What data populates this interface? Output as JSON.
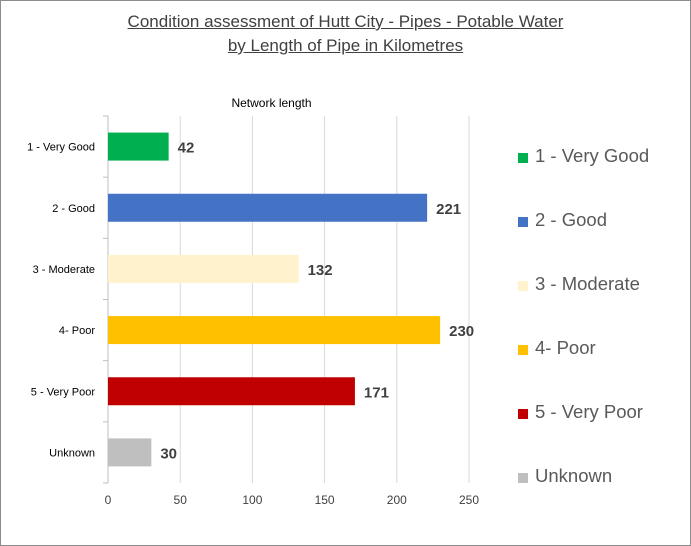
{
  "chart_data": {
    "type": "bar",
    "orientation": "horizontal",
    "title_line1": "Condition assessment of Hutt City - Pipes - Potable Water",
    "title_line2": "by Length of Pipe in Kilometres",
    "xlabel": "Network length",
    "categories": [
      "1 - Very Good",
      "2 - Good",
      "3 - Moderate",
      "4- Poor",
      "5 - Very Poor",
      "Unknown"
    ],
    "values": [
      42,
      221,
      132,
      230,
      171,
      30
    ],
    "colors": [
      "#00b050",
      "#4472c4",
      "#fff2cc",
      "#ffc000",
      "#c00000",
      "#bfbfbf"
    ],
    "xlim": [
      0,
      250
    ],
    "xticks": [
      0,
      50,
      100,
      150,
      200,
      250
    ],
    "grid": true,
    "legend_position": "right"
  }
}
